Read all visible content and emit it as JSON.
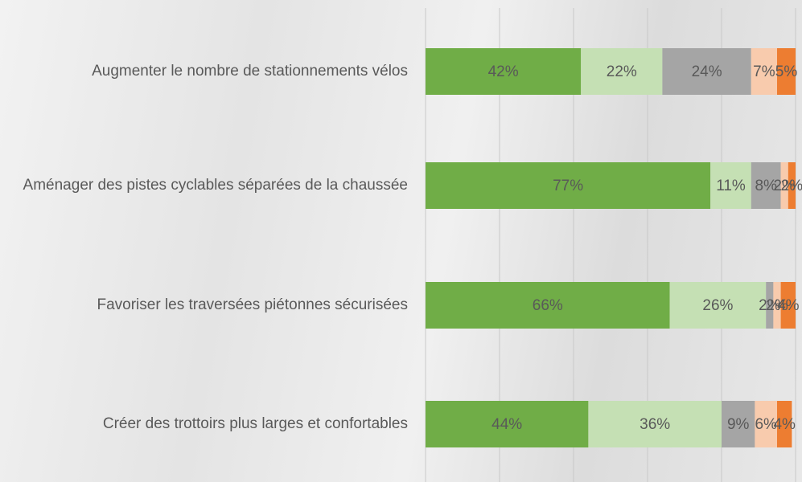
{
  "chart_data": {
    "type": "stacked-bar-horizontal",
    "categories": [
      "Augmenter le nombre de stationnements vélos",
      "Aménager des pistes cyclables séparées de la chaussée",
      "Favoriser les traversées piétonnes sécurisées",
      "Créer des trottoirs plus larges et confortables"
    ],
    "series": [
      {
        "color": "#70ad47",
        "values": [
          42,
          77,
          66,
          44
        ],
        "value_labels": [
          "42%",
          "77%",
          "66%",
          "44%"
        ]
      },
      {
        "color": "#c5e0b4",
        "values": [
          22,
          11,
          26,
          36
        ],
        "value_labels": [
          "22%",
          "11%",
          "26%",
          "36%"
        ]
      },
      {
        "color": "#a5a5a5",
        "values": [
          24,
          8,
          2,
          9
        ],
        "value_labels": [
          "24%",
          "8%",
          "2%",
          "9%"
        ]
      },
      {
        "color": "#f8cbad",
        "values": [
          7,
          2,
          2,
          6
        ],
        "value_labels": [
          "7%",
          "2%",
          "2%",
          "6%"
        ]
      },
      {
        "color": "#ed7d31",
        "values": [
          5,
          2,
          4,
          4
        ],
        "value_labels": [
          "5%",
          "2%",
          "4%",
          "4%"
        ]
      }
    ],
    "xlim": [
      0,
      100
    ],
    "xticks": [
      0,
      20,
      40,
      60,
      80,
      100
    ],
    "grid": true
  }
}
